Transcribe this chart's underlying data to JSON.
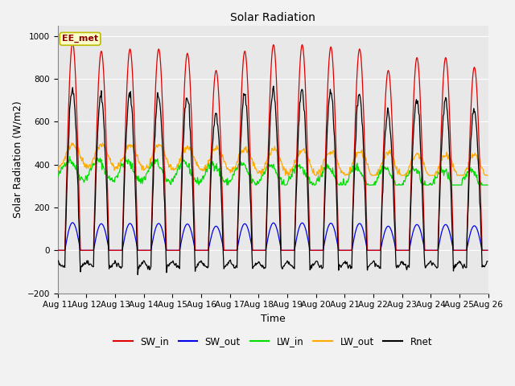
{
  "title": "Solar Radiation",
  "ylabel": "Solar Radiation (W/m2)",
  "xlabel": "Time",
  "ylim": [
    -200,
    1050
  ],
  "start_day": 11,
  "end_day": 26,
  "num_days": 15,
  "dt_hours": 0.5,
  "annotation_text": "EE_met",
  "background_color": "#e8e8e8",
  "colors": {
    "SW_in": "#dd0000",
    "SW_out": "#0000ee",
    "LW_in": "#00dd00",
    "LW_out": "#ffaa00",
    "Rnet": "#000000"
  },
  "tick_fontsize": 7.5,
  "figsize": [
    6.4,
    4.8
  ],
  "dpi": 100
}
